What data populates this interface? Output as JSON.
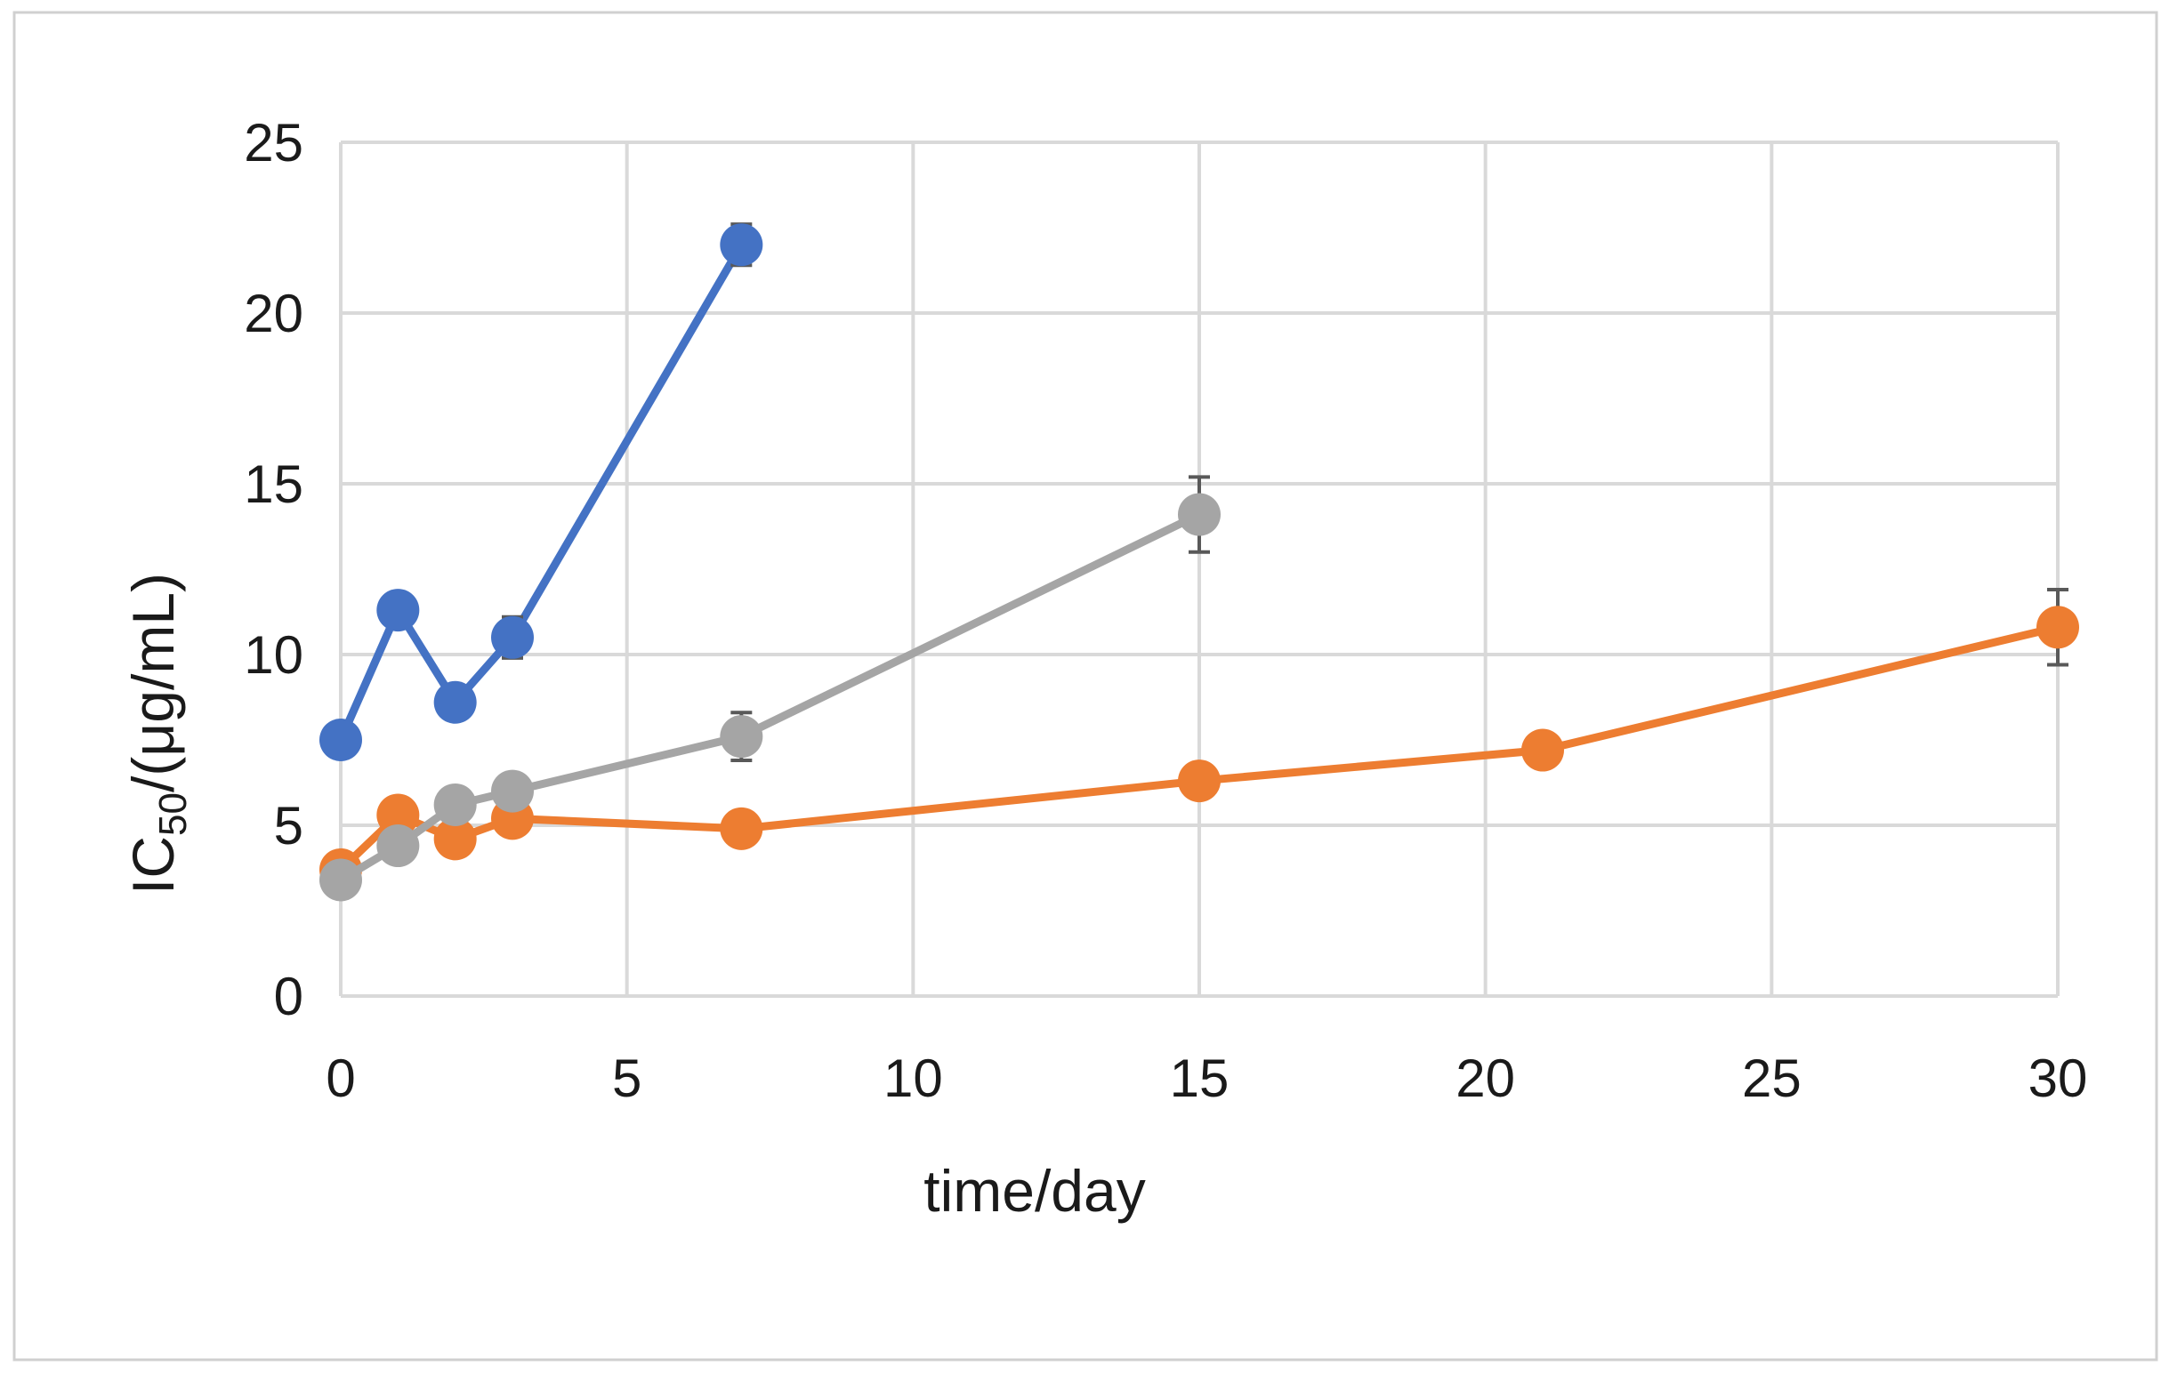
{
  "chart_data": {
    "type": "line",
    "xlabel": "time/day",
    "ylabel": {
      "prefix": "IC",
      "subscript": "50",
      "suffix": "/(μg/mL)"
    },
    "xlim": [
      0,
      30
    ],
    "ylim": [
      0,
      25
    ],
    "xticks": [
      0,
      5,
      10,
      15,
      20,
      25,
      30
    ],
    "yticks": [
      0,
      5,
      10,
      15,
      20,
      25
    ],
    "grid": true,
    "legend": "none",
    "series": [
      {
        "color": "#4472c4",
        "x": [
          0,
          1,
          2,
          3,
          7
        ],
        "y": [
          7.5,
          11.3,
          8.6,
          10.5,
          22.0
        ],
        "error": [
          0.1,
          0.3,
          0.2,
          0.6,
          0.6
        ]
      },
      {
        "color": "#ed7d31",
        "x": [
          0,
          1,
          2,
          3,
          7,
          15,
          21,
          30
        ],
        "y": [
          3.7,
          5.3,
          4.6,
          5.2,
          4.9,
          6.3,
          7.2,
          10.8
        ],
        "error": [
          0.2,
          0.2,
          0.2,
          0.2,
          0.1,
          0.1,
          0.2,
          1.1
        ]
      },
      {
        "color": "#a5a5a5",
        "x": [
          0,
          1,
          2,
          3,
          7,
          15
        ],
        "y": [
          3.4,
          4.4,
          5.6,
          6.0,
          7.6,
          14.1
        ],
        "error": [
          0.2,
          0.4,
          0.2,
          0.2,
          0.7,
          1.1
        ]
      }
    ]
  }
}
